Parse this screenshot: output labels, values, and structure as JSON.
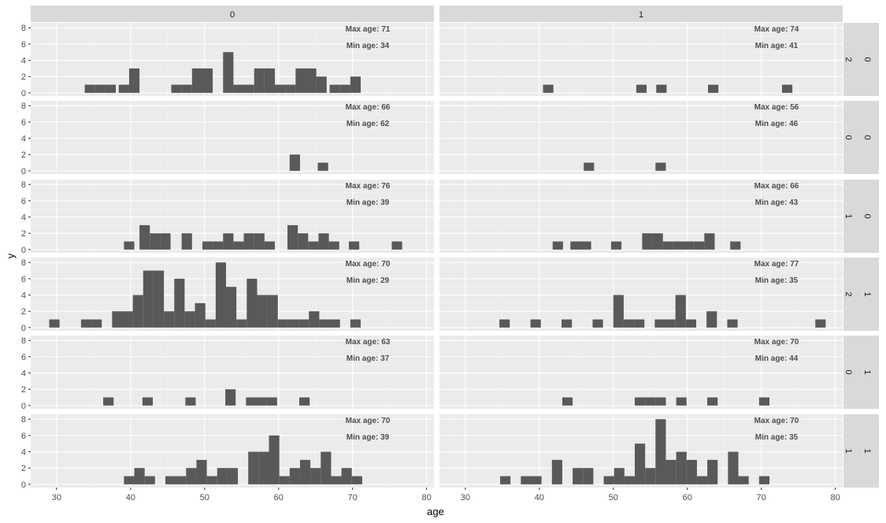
{
  "chart_data": {
    "type": "bar",
    "subtype": "faceted-histogram",
    "xlabel": "age",
    "ylabel": "y",
    "xlim": [
      26.5,
      81
    ],
    "ylim": [
      -0.4,
      8.6
    ],
    "x_ticks": [
      30,
      40,
      50,
      60,
      70,
      80
    ],
    "y_ticks": [
      0,
      2,
      4,
      6,
      8
    ],
    "bin_width": 1.4,
    "grid": true,
    "colors": {
      "bar": "#595959",
      "panel_bg": "#ebebeb",
      "grid_major": "#ffffff",
      "strip_bg": "#d9d9d9"
    },
    "col_strips": [
      "0",
      "1"
    ],
    "row_strips": [
      [
        "0",
        "2"
      ],
      [
        "0",
        "0"
      ],
      [
        "0",
        "1"
      ],
      [
        "1",
        "2"
      ],
      [
        "1",
        "0"
      ],
      [
        "1",
        "1"
      ]
    ],
    "panels": [
      {
        "row": 0,
        "col": 0,
        "max_label": "Max age: 71",
        "min_label": "Min age: 34",
        "bins": [
          [
            34.5,
            1
          ],
          [
            35.9,
            1
          ],
          [
            37.3,
            1
          ],
          [
            39.1,
            1
          ],
          [
            40.5,
            3
          ],
          [
            46.2,
            1
          ],
          [
            47.6,
            1
          ],
          [
            49,
            3
          ],
          [
            50.4,
            3
          ],
          [
            53.2,
            5
          ],
          [
            54.6,
            1
          ],
          [
            56,
            1
          ],
          [
            57.4,
            3
          ],
          [
            58.8,
            3
          ],
          [
            60.2,
            1
          ],
          [
            61.6,
            1
          ],
          [
            63,
            3
          ],
          [
            64.4,
            3
          ],
          [
            65.8,
            2
          ],
          [
            67.6,
            1
          ],
          [
            69,
            1
          ],
          [
            70.4,
            2
          ]
        ]
      },
      {
        "row": 0,
        "col": 1,
        "max_label": "Max age: 74",
        "min_label": "Min age: 41",
        "bins": [
          [
            41.2,
            1
          ],
          [
            53.8,
            1
          ],
          [
            56.5,
            1
          ],
          [
            63.5,
            1
          ],
          [
            73.5,
            1
          ]
        ]
      },
      {
        "row": 1,
        "col": 0,
        "max_label": "Max age: 66",
        "min_label": "Min age: 62",
        "bins": [
          [
            62.2,
            2
          ],
          [
            66,
            1
          ]
        ]
      },
      {
        "row": 1,
        "col": 1,
        "max_label": "Max age: 56",
        "min_label": "Min age: 46",
        "bins": [
          [
            46.7,
            1
          ],
          [
            56.4,
            1
          ]
        ]
      },
      {
        "row": 2,
        "col": 0,
        "max_label": "Max age: 76",
        "min_label": "Min age: 39",
        "bins": [
          [
            39.8,
            1
          ],
          [
            41.9,
            3
          ],
          [
            43.3,
            2
          ],
          [
            44.7,
            2
          ],
          [
            47.6,
            2
          ],
          [
            50.4,
            1
          ],
          [
            51.8,
            1
          ],
          [
            53.2,
            2
          ],
          [
            54.6,
            1
          ],
          [
            56,
            2
          ],
          [
            57.4,
            2
          ],
          [
            58.8,
            1
          ],
          [
            61.9,
            3
          ],
          [
            63.3,
            2
          ],
          [
            64.7,
            1
          ],
          [
            66.1,
            2
          ],
          [
            67.5,
            1
          ],
          [
            70.2,
            1
          ],
          [
            76,
            1
          ]
        ]
      },
      {
        "row": 2,
        "col": 1,
        "max_label": "Max age: 66",
        "min_label": "Min age: 43",
        "bins": [
          [
            42.5,
            1
          ],
          [
            44.9,
            1
          ],
          [
            46.3,
            1
          ],
          [
            50.4,
            1
          ],
          [
            54.6,
            2
          ],
          [
            56,
            2
          ],
          [
            57.4,
            1
          ],
          [
            58.8,
            1
          ],
          [
            60.2,
            1
          ],
          [
            61.6,
            1
          ],
          [
            63,
            2
          ],
          [
            66.5,
            1
          ]
        ]
      },
      {
        "row": 3,
        "col": 0,
        "max_label": "Max age: 70",
        "min_label": "Min age: 29",
        "bins": [
          [
            29.7,
            1
          ],
          [
            34,
            1
          ],
          [
            35.4,
            1
          ],
          [
            38.2,
            2
          ],
          [
            39.6,
            2
          ],
          [
            41,
            4
          ],
          [
            42.4,
            7
          ],
          [
            43.8,
            7
          ],
          [
            45.2,
            2
          ],
          [
            46.6,
            6
          ],
          [
            48,
            2
          ],
          [
            49.4,
            3
          ],
          [
            50.8,
            1
          ],
          [
            52.2,
            8
          ],
          [
            53.6,
            5
          ],
          [
            55,
            1
          ],
          [
            56.4,
            6
          ],
          [
            57.8,
            4
          ],
          [
            59.2,
            4
          ],
          [
            60.6,
            1
          ],
          [
            62,
            1
          ],
          [
            63.4,
            1
          ],
          [
            64.8,
            2
          ],
          [
            66.2,
            1
          ],
          [
            67.6,
            1
          ],
          [
            70.4,
            1
          ]
        ]
      },
      {
        "row": 3,
        "col": 1,
        "max_label": "Max age: 77",
        "min_label": "Min age: 35",
        "bins": [
          [
            35.3,
            1
          ],
          [
            39.5,
            1
          ],
          [
            43.7,
            1
          ],
          [
            47.9,
            1
          ],
          [
            50.7,
            4
          ],
          [
            52.1,
            1
          ],
          [
            53.5,
            1
          ],
          [
            56.3,
            1
          ],
          [
            57.7,
            1
          ],
          [
            59.1,
            4
          ],
          [
            60.5,
            1
          ],
          [
            63.3,
            2
          ],
          [
            66.1,
            1
          ],
          [
            78,
            1
          ]
        ]
      },
      {
        "row": 4,
        "col": 0,
        "max_label": "Max age: 63",
        "min_label": "Min age: 37",
        "bins": [
          [
            37,
            1
          ],
          [
            42.3,
            1
          ],
          [
            48.1,
            1
          ],
          [
            53.5,
            2
          ],
          [
            56.3,
            1
          ],
          [
            57.7,
            1
          ],
          [
            59.1,
            1
          ],
          [
            63.5,
            1
          ]
        ]
      },
      {
        "row": 4,
        "col": 1,
        "max_label": "Max age: 70",
        "min_label": "Min age: 44",
        "bins": [
          [
            43.8,
            1
          ],
          [
            53.6,
            1
          ],
          [
            55,
            1
          ],
          [
            56.4,
            1
          ],
          [
            59.2,
            1
          ],
          [
            63.4,
            1
          ],
          [
            70.4,
            1
          ]
        ]
      },
      {
        "row": 5,
        "col": 0,
        "max_label": "Max age: 70",
        "min_label": "Min age: 39",
        "bins": [
          [
            39.8,
            1
          ],
          [
            41.2,
            2
          ],
          [
            42.6,
            1
          ],
          [
            45.4,
            1
          ],
          [
            46.8,
            1
          ],
          [
            48.2,
            2
          ],
          [
            49.6,
            3
          ],
          [
            51,
            1
          ],
          [
            52.4,
            2
          ],
          [
            53.8,
            2
          ],
          [
            56.6,
            4
          ],
          [
            58,
            4
          ],
          [
            59.4,
            6
          ],
          [
            60.8,
            1
          ],
          [
            62.2,
            2
          ],
          [
            63.6,
            3
          ],
          [
            65,
            2
          ],
          [
            66.4,
            4
          ],
          [
            67.8,
            1
          ],
          [
            69.2,
            2
          ],
          [
            70.6,
            1
          ]
        ]
      },
      {
        "row": 5,
        "col": 1,
        "max_label": "Max age: 70",
        "min_label": "Min age: 35",
        "bins": [
          [
            35.4,
            1
          ],
          [
            38.2,
            1
          ],
          [
            39.6,
            1
          ],
          [
            42.4,
            3
          ],
          [
            45.2,
            2
          ],
          [
            46.6,
            2
          ],
          [
            49.4,
            1
          ],
          [
            50.8,
            2
          ],
          [
            52.2,
            1
          ],
          [
            53.6,
            5
          ],
          [
            55,
            2
          ],
          [
            56.4,
            8
          ],
          [
            57.8,
            3
          ],
          [
            59.2,
            4
          ],
          [
            60.6,
            3
          ],
          [
            62,
            1
          ],
          [
            63.4,
            3
          ],
          [
            66.2,
            4
          ],
          [
            67.6,
            1
          ],
          [
            70.4,
            1
          ]
        ]
      }
    ]
  }
}
